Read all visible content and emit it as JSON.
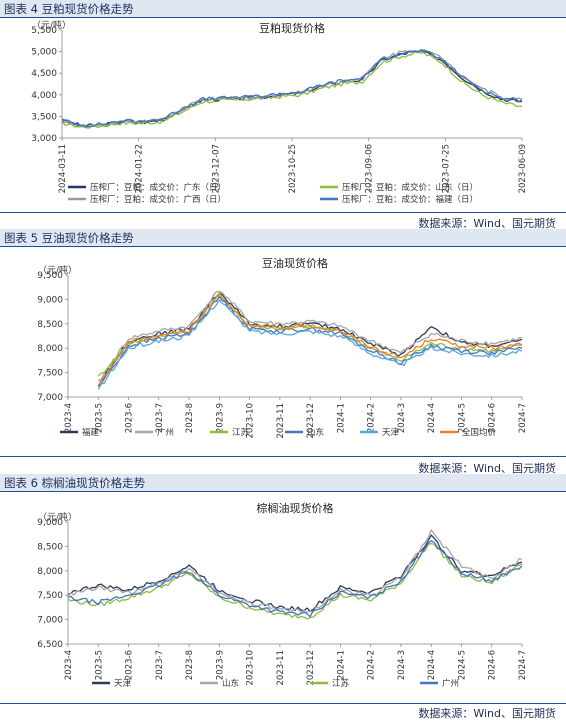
{
  "figures": [
    {
      "header": "图表 4 豆粕现货价格走势",
      "source": "数据来源：Wind、国元期货"
    },
    {
      "header": "图表 5 豆油现货价格走势",
      "source": "数据来源：Wind、国元期货"
    },
    {
      "header": "图表 6 棕榈油现货价格走势",
      "source": "数据来源：Wind、国元期货"
    }
  ],
  "chart_data": [
    {
      "type": "line",
      "title": "豆粕现货价格",
      "unit": "（元/吨）",
      "ylim": [
        3000,
        5500
      ],
      "yticks": [
        "3,000",
        "3,500",
        "4,000",
        "4,500",
        "5,000",
        "5,500"
      ],
      "xticks": [
        "2024-03-11",
        "2024-01-22",
        "2023-12-07",
        "2023-10-25",
        "2023-09-06",
        "2023-07-25",
        "2023-06-09"
      ],
      "x_reversed": true,
      "grid": false,
      "legend_position": "bottom",
      "series": [
        {
          "name": "压榨厂：豆粕：成交价：广东（日）",
          "color": "#1f3864",
          "values": [
            3400,
            3280,
            3300,
            3380,
            3360,
            3420,
            3650,
            3880,
            3900,
            3920,
            3950,
            4000,
            4050,
            4200,
            4300,
            4350,
            4800,
            4950,
            5000,
            4800,
            4400,
            4100,
            3900,
            3850
          ]
        },
        {
          "name": "压榨厂：豆粕：成交价：广西（日）",
          "color": "#9a9a9a",
          "values": [
            3380,
            3270,
            3310,
            3390,
            3370,
            3430,
            3660,
            3890,
            3910,
            3930,
            3960,
            4010,
            4060,
            4220,
            4320,
            4380,
            4850,
            5000,
            5050,
            4850,
            4450,
            4150,
            3950,
            3880
          ]
        },
        {
          "name": "压榨厂：豆粕：成交价：山东（日）",
          "color": "#8dbb3c",
          "values": [
            3350,
            3250,
            3280,
            3350,
            3340,
            3380,
            3600,
            3840,
            3870,
            3890,
            3920,
            3960,
            4000,
            4150,
            4250,
            4300,
            4750,
            4900,
            4980,
            4750,
            4300,
            4000,
            3820,
            3720
          ]
        },
        {
          "name": "压榨厂：豆粕：成交价：福建（日）",
          "color": "#4472c4",
          "values": [
            3420,
            3290,
            3320,
            3400,
            3380,
            3440,
            3670,
            3900,
            3920,
            3940,
            3970,
            4020,
            4070,
            4230,
            4330,
            4370,
            4820,
            4970,
            5020,
            4820,
            4420,
            4120,
            3920,
            3870
          ]
        }
      ]
    },
    {
      "type": "line",
      "title": "豆油现货价格",
      "unit": "（元/吨）",
      "ylim": [
        7000,
        9500
      ],
      "yticks": [
        "7,000",
        "7,500",
        "8,000",
        "8,500",
        "9,000",
        "9,500"
      ],
      "xticks": [
        "2023-4",
        "2023-5",
        "2023-6",
        "2023-7",
        "2023-8",
        "2023-9",
        "2023-10",
        "2023-11",
        "2023-12",
        "2024-1",
        "2024-2",
        "2024-3",
        "2024-4",
        "2024-5",
        "2024-6",
        "2024-7"
      ],
      "grid": false,
      "legend_position": "bottom",
      "series": [
        {
          "name": "福建",
          "color": "#2e3a59",
          "values": [
            null,
            7250,
            8150,
            8300,
            8400,
            9150,
            8500,
            8450,
            8500,
            8400,
            8100,
            7850,
            8450,
            8100,
            8050,
            8150
          ]
        },
        {
          "name": "广州",
          "color": "#a6a6a6",
          "values": [
            null,
            7300,
            8200,
            8350,
            8450,
            9200,
            8550,
            8500,
            8550,
            8450,
            8150,
            7900,
            8300,
            8150,
            8100,
            8200
          ]
        },
        {
          "name": "江苏",
          "color": "#8dbb3c",
          "values": [
            null,
            7400,
            8100,
            8250,
            8350,
            9100,
            8450,
            8400,
            8450,
            8350,
            8000,
            7750,
            8100,
            8000,
            7950,
            8050
          ]
        },
        {
          "name": "山东",
          "color": "#4472c4",
          "values": [
            null,
            7200,
            8050,
            8200,
            8300,
            9050,
            8400,
            8350,
            8400,
            8300,
            7950,
            7700,
            8050,
            7950,
            7900,
            8000
          ]
        },
        {
          "name": "天津",
          "color": "#5aa7d6",
          "values": [
            null,
            7150,
            8000,
            8150,
            8250,
            9000,
            8350,
            8300,
            8350,
            8250,
            7900,
            7650,
            8000,
            7900,
            7850,
            7950
          ]
        },
        {
          "name": "全国均价",
          "color": "#ed7d31",
          "values": [
            null,
            7250,
            8120,
            8270,
            8360,
            9110,
            8460,
            8410,
            8460,
            8360,
            8030,
            7800,
            8200,
            8050,
            8000,
            8080
          ]
        }
      ]
    },
    {
      "type": "line",
      "title": "棕榈油现货价格",
      "unit": "（元/吨）",
      "ylim": [
        6500,
        9000
      ],
      "yticks": [
        "6,500",
        "7,000",
        "7,500",
        "8,000",
        "8,500",
        "9,000"
      ],
      "xticks": [
        "2023-4",
        "2023-5",
        "2023-6",
        "2023-7",
        "2023-8",
        "2023-9",
        "2023-10",
        "2023-11",
        "2023-12",
        "2024-1",
        "2024-2",
        "2024-3",
        "2024-4",
        "2024-5",
        "2024-6",
        "2024-7"
      ],
      "grid": false,
      "legend_position": "bottom",
      "series": [
        {
          "name": "天津",
          "color": "#2e3a59",
          "values": [
            7550,
            7700,
            7600,
            7800,
            8100,
            7600,
            7400,
            7250,
            7200,
            7650,
            7550,
            7900,
            8700,
            8000,
            7900,
            8200
          ]
        },
        {
          "name": "山东",
          "color": "#a6a6a6",
          "values": [
            7500,
            7650,
            7550,
            7750,
            8050,
            7550,
            7350,
            7200,
            7150,
            7600,
            7500,
            7850,
            8800,
            8100,
            7850,
            8250
          ]
        },
        {
          "name": "江苏",
          "color": "#8dbb3c",
          "values": [
            7400,
            7300,
            7450,
            7650,
            7950,
            7450,
            7250,
            7100,
            7050,
            7500,
            7400,
            7750,
            8600,
            7900,
            7750,
            8150
          ]
        },
        {
          "name": "广州",
          "color": "#4472c4",
          "values": [
            7450,
            7350,
            7500,
            7700,
            8000,
            7500,
            7300,
            7150,
            7100,
            7550,
            7450,
            7800,
            8650,
            7950,
            7800,
            8100
          ]
        }
      ]
    }
  ]
}
